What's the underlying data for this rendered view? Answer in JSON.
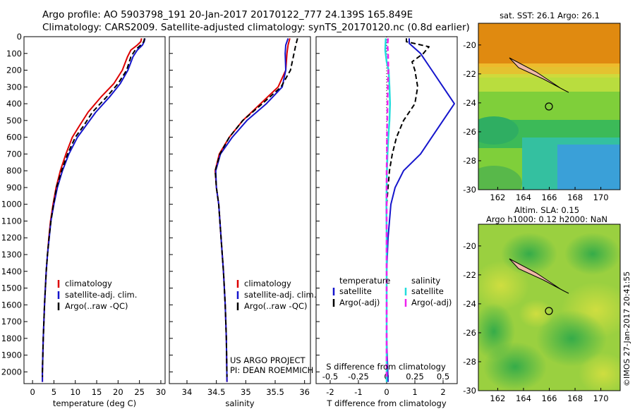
{
  "header": {
    "line1": "Argo profile: AO 5903798_191 20-Jan-2017 20170122_777 24.139S 165.849E",
    "line2": "Climatology: CARS2009. Satellite-adjusted climatology: synTS_20170120.nc (0.8d earlier)"
  },
  "colors": {
    "climatology": "#dd0000",
    "satellite": "#1515cc",
    "argo": "#000000",
    "salinity_sat": "#22dddd",
    "salinity_argo": "#ee22ee"
  },
  "chart_data": [
    {
      "type": "line",
      "id": "temperature",
      "xlabel": "temperature (deg C)",
      "xlim": [
        -2,
        31
      ],
      "xticks": [
        0,
        5,
        10,
        15,
        20,
        25,
        30
      ],
      "ylim": [
        2070,
        0
      ],
      "yticks": [
        0,
        100,
        200,
        300,
        400,
        500,
        600,
        700,
        800,
        900,
        1000,
        1100,
        1200,
        1300,
        1400,
        1500,
        1600,
        1700,
        1800,
        1900,
        2000
      ],
      "legend": [
        "climatology",
        "satellite-adj. clim.",
        "Argo(..raw -QC)"
      ],
      "series": [
        {
          "name": "climatology",
          "color": "#dd0000",
          "style": "solid",
          "points": [
            [
              25.5,
              10
            ],
            [
              25.3,
              30
            ],
            [
              24.5,
              50
            ],
            [
              23,
              80
            ],
            [
              22.2,
              120
            ],
            [
              21,
              200
            ],
            [
              19,
              280
            ],
            [
              16,
              360
            ],
            [
              13,
              450
            ],
            [
              11,
              530
            ],
            [
              9.3,
              600
            ],
            [
              7.8,
              700
            ],
            [
              6.5,
              800
            ],
            [
              5.5,
              900
            ],
            [
              4.8,
              1000
            ],
            [
              4.2,
              1100
            ],
            [
              3.8,
              1200
            ],
            [
              3.5,
              1300
            ],
            [
              3.2,
              1400
            ],
            [
              3,
              1500
            ],
            [
              2.8,
              1600
            ],
            [
              2.65,
              1700
            ],
            [
              2.5,
              1800
            ],
            [
              2.4,
              1900
            ],
            [
              2.3,
              2000
            ],
            [
              2.3,
              2060
            ]
          ]
        },
        {
          "name": "satellite-adj. clim.",
          "color": "#1515cc",
          "style": "solid",
          "points": [
            [
              26.3,
              10
            ],
            [
              26.1,
              30
            ],
            [
              25.7,
              50
            ],
            [
              24.5,
              80
            ],
            [
              23.5,
              120
            ],
            [
              22.3,
              200
            ],
            [
              20.5,
              280
            ],
            [
              18,
              360
            ],
            [
              14.8,
              450
            ],
            [
              12.5,
              530
            ],
            [
              10.5,
              600
            ],
            [
              8.5,
              700
            ],
            [
              7,
              800
            ],
            [
              5.8,
              900
            ],
            [
              5,
              1000
            ],
            [
              4.3,
              1100
            ],
            [
              3.9,
              1200
            ],
            [
              3.5,
              1300
            ],
            [
              3.2,
              1400
            ],
            [
              3,
              1500
            ],
            [
              2.8,
              1600
            ],
            [
              2.65,
              1700
            ],
            [
              2.5,
              1800
            ],
            [
              2.4,
              1900
            ],
            [
              2.3,
              2000
            ],
            [
              2.3,
              2060
            ]
          ]
        },
        {
          "name": "Argo(..raw -QC)",
          "color": "#000000",
          "style": "dashed",
          "points": [
            [
              26.2,
              10
            ],
            [
              26,
              30
            ],
            [
              25.3,
              50
            ],
            [
              24,
              80
            ],
            [
              23,
              120
            ],
            [
              22,
              200
            ],
            [
              20,
              280
            ],
            [
              17.3,
              360
            ],
            [
              14,
              450
            ],
            [
              12,
              530
            ],
            [
              10,
              600
            ],
            [
              8.2,
              700
            ],
            [
              6.8,
              800
            ],
            [
              5.6,
              900
            ],
            [
              4.9,
              1000
            ],
            [
              4.3,
              1100
            ],
            [
              3.85,
              1200
            ],
            [
              3.5,
              1300
            ],
            [
              3.2,
              1400
            ],
            [
              3,
              1500
            ],
            [
              2.8,
              1600
            ],
            [
              2.65,
              1700
            ],
            [
              2.5,
              1800
            ],
            [
              2.4,
              1900
            ],
            [
              2.3,
              2000
            ],
            [
              2.3,
              2030
            ]
          ]
        }
      ]
    },
    {
      "type": "line",
      "id": "salinity",
      "xlabel": "salinity",
      "xlim": [
        33.7,
        36.1
      ],
      "xticks": [
        34,
        34.5,
        35,
        35.5,
        36
      ],
      "ylim": [
        2070,
        0
      ],
      "legend": [
        "climatology",
        "satellite-adj. clim.",
        "Argo(..raw -QC)"
      ],
      "annotation": [
        "US ARGO PROJECT",
        "PI: DEAN ROEMMICH"
      ],
      "series": [
        {
          "name": "climatology",
          "color": "#dd0000",
          "style": "solid",
          "points": [
            [
              35.75,
              10
            ],
            [
              35.72,
              50
            ],
            [
              35.7,
              100
            ],
            [
              35.68,
              200
            ],
            [
              35.55,
              300
            ],
            [
              35.25,
              400
            ],
            [
              34.95,
              500
            ],
            [
              34.72,
              600
            ],
            [
              34.55,
              700
            ],
            [
              34.48,
              800
            ],
            [
              34.5,
              900
            ],
            [
              34.54,
              1000
            ],
            [
              34.58,
              1200
            ],
            [
              34.62,
              1400
            ],
            [
              34.65,
              1600
            ],
            [
              34.67,
              1800
            ],
            [
              34.68,
              2060
            ]
          ]
        },
        {
          "name": "satellite-adj. clim.",
          "color": "#1515cc",
          "style": "solid",
          "points": [
            [
              35.72,
              10
            ],
            [
              35.68,
              50
            ],
            [
              35.67,
              100
            ],
            [
              35.68,
              200
            ],
            [
              35.62,
              300
            ],
            [
              35.35,
              400
            ],
            [
              35.02,
              500
            ],
            [
              34.77,
              600
            ],
            [
              34.57,
              700
            ],
            [
              34.49,
              800
            ],
            [
              34.5,
              900
            ],
            [
              34.54,
              1000
            ],
            [
              34.58,
              1200
            ],
            [
              34.62,
              1400
            ],
            [
              34.65,
              1600
            ],
            [
              34.67,
              1800
            ],
            [
              34.68,
              2060
            ]
          ]
        },
        {
          "name": "Argo(..raw -QC)",
          "color": "#000000",
          "style": "dashed",
          "points": [
            [
              35.88,
              10
            ],
            [
              35.85,
              50
            ],
            [
              35.82,
              100
            ],
            [
              35.76,
              200
            ],
            [
              35.6,
              300
            ],
            [
              35.28,
              400
            ],
            [
              34.95,
              500
            ],
            [
              34.72,
              600
            ],
            [
              34.56,
              700
            ],
            [
              34.48,
              800
            ],
            [
              34.5,
              900
            ],
            [
              34.54,
              1000
            ],
            [
              34.58,
              1200
            ],
            [
              34.62,
              1400
            ],
            [
              34.65,
              1600
            ],
            [
              34.67,
              1800
            ],
            [
              34.68,
              2030
            ]
          ]
        }
      ]
    },
    {
      "type": "line",
      "id": "difference",
      "xlabel": "T difference from climatology",
      "xlabel_top": "S difference from climatology",
      "xlim": [
        -2.5,
        2.5
      ],
      "xticks": [
        -2,
        -1,
        0,
        1,
        2
      ],
      "xticks_s": [
        -0.5,
        -0.25,
        0,
        0.25,
        0.5
      ],
      "ylim": [
        2070,
        0
      ],
      "legend_titles": [
        "temperature",
        "salinity"
      ],
      "legend": [
        "satellite",
        "Argo(-adj)",
        "satellite",
        "Argo(-adj)"
      ],
      "series": [
        {
          "name": "satellite",
          "group": "temperature",
          "color": "#1515cc",
          "style": "solid",
          "points": [
            [
              0.8,
              10
            ],
            [
              0.8,
              40
            ],
            [
              1.2,
              100
            ],
            [
              1.6,
              200
            ],
            [
              2.0,
              300
            ],
            [
              2.4,
              400
            ],
            [
              2.0,
              500
            ],
            [
              1.6,
              600
            ],
            [
              1.2,
              700
            ],
            [
              0.6,
              800
            ],
            [
              0.3,
              900
            ],
            [
              0.15,
              1000
            ],
            [
              0.05,
              1200
            ],
            [
              0,
              1400
            ],
            [
              0,
              1600
            ],
            [
              0,
              1800
            ],
            [
              0.05,
              2060
            ]
          ]
        },
        {
          "name": "Argo(-adj)",
          "group": "temperature",
          "color": "#000000",
          "style": "dashed",
          "points": [
            [
              0.7,
              10
            ],
            [
              0.7,
              30
            ],
            [
              1.5,
              60
            ],
            [
              1.3,
              100
            ],
            [
              0.9,
              150
            ],
            [
              1.0,
              200
            ],
            [
              1.1,
              300
            ],
            [
              1.0,
              400
            ],
            [
              0.6,
              500
            ],
            [
              0.35,
              600
            ],
            [
              0.2,
              700
            ],
            [
              0.1,
              800
            ],
            [
              0.05,
              900
            ],
            [
              0,
              1000
            ],
            [
              0,
              1400
            ],
            [
              0,
              1800
            ],
            [
              0,
              2030
            ]
          ]
        },
        {
          "name": "satellite",
          "group": "salinity",
          "color": "#22dddd",
          "style": "solid",
          "points": [
            [
              -0.03,
              10
            ],
            [
              -0.05,
              80
            ],
            [
              0,
              150
            ],
            [
              0.07,
              200
            ],
            [
              0.1,
              300
            ],
            [
              0.12,
              400
            ],
            [
              0.1,
              500
            ],
            [
              0.06,
              600
            ],
            [
              0.03,
              700
            ],
            [
              0.01,
              800
            ],
            [
              0,
              900
            ],
            [
              -0.01,
              1000
            ],
            [
              0,
              1200
            ],
            [
              0,
              1400
            ],
            [
              0,
              1600
            ],
            [
              0,
              1800
            ],
            [
              0,
              2060
            ]
          ]
        },
        {
          "name": "Argo(-adj)",
          "group": "salinity",
          "color": "#ee22ee",
          "style": "dashed",
          "points": [
            [
              0.05,
              10
            ],
            [
              0.03,
              50
            ],
            [
              0.05,
              100
            ],
            [
              0.06,
              200
            ],
            [
              0.04,
              300
            ],
            [
              0.03,
              400
            ],
            [
              0.02,
              500
            ],
            [
              0.01,
              600
            ],
            [
              0.01,
              700
            ],
            [
              0,
              800
            ],
            [
              0,
              900
            ],
            [
              0,
              1000
            ],
            [
              0,
              1200
            ],
            [
              0,
              1400
            ],
            [
              0,
              1800
            ],
            [
              0,
              2030
            ]
          ]
        }
      ]
    }
  ],
  "maps": [
    {
      "id": "sst-map",
      "title": "sat. SST: 26.1  Argo: 26.1",
      "xticks": [
        162,
        164,
        166,
        168,
        170
      ],
      "yticks": [
        -20,
        -22,
        -24,
        -26,
        -28,
        -30
      ],
      "xlim": [
        160.5,
        171.5
      ],
      "ylim": [
        -30,
        -18.5
      ],
      "float": [
        165.85,
        -24.14
      ]
    },
    {
      "id": "sla-map",
      "title": "Altim. SLA: 0.15",
      "subtitle": "Argo h1000: 0.12 h2000: NaN",
      "xticks": [
        162,
        164,
        166,
        168,
        170
      ],
      "yticks": [
        -20,
        -22,
        -24,
        -26,
        -28,
        -30
      ],
      "xlim": [
        160.5,
        171.5
      ],
      "ylim": [
        -30,
        -18.5
      ],
      "float": [
        165.85,
        -24.14
      ]
    }
  ],
  "footer": "©IMOS 27-Jan-2017 20:41:55"
}
